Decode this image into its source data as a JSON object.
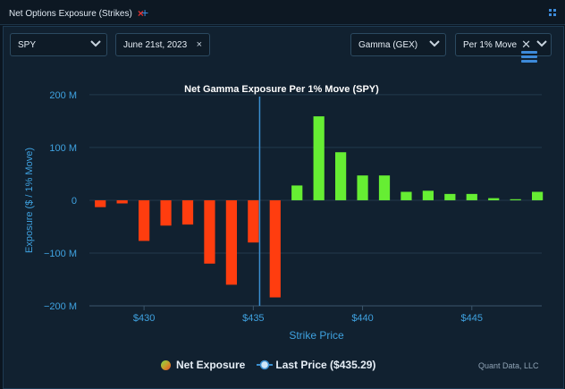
{
  "tab": {
    "label": "Net Options Exposure (Strikes)",
    "close": "×",
    "add": "+"
  },
  "controls": {
    "ticker": "SPY",
    "date": "June 21st, 2023",
    "date_clear": "×",
    "metric": "Gamma (GEX)",
    "mode": "Per 1% Move",
    "mode_clear": "✕"
  },
  "colors": {
    "positive": "#66ee33",
    "negative": "#ff3d0f",
    "last_price_line": "#3a8fd0",
    "axis_text": "#3fa2e0"
  },
  "chart_data": {
    "type": "bar",
    "title": "Net Gamma Exposure Per 1% Move (SPY)",
    "xlabel": "Strike Price",
    "ylabel": "Exposure ($ / 1% Move)",
    "xlim": [
      427.5,
      448.2
    ],
    "ylim": [
      -200,
      210
    ],
    "y_ticks": [
      -200,
      -100,
      0,
      100,
      200
    ],
    "y_tick_labels": [
      "−200 M",
      "−100 M",
      "0",
      "100 M",
      "200 M"
    ],
    "x_ticks": [
      430,
      435,
      440,
      445
    ],
    "x_tick_labels": [
      "$430",
      "$435",
      "$440",
      "$445"
    ],
    "last_price": 435.29,
    "series": [
      {
        "name": "Net Exposure",
        "x": [
          428,
          429,
          430,
          431,
          432,
          433,
          434,
          435,
          436,
          437,
          438,
          439,
          440,
          441,
          442,
          443,
          444,
          445,
          446,
          447,
          448
        ],
        "values": [
          -13,
          -6,
          -77,
          -48,
          -46,
          -120,
          -160,
          -80,
          -184,
          28,
          159,
          91,
          47,
          47,
          16,
          18,
          12,
          12,
          4,
          2,
          16
        ]
      }
    ],
    "legend": [
      "Net Exposure",
      "Last Price ($435.29)"
    ],
    "legend_position": "bottom"
  },
  "credit": "Quant Data, LLC"
}
